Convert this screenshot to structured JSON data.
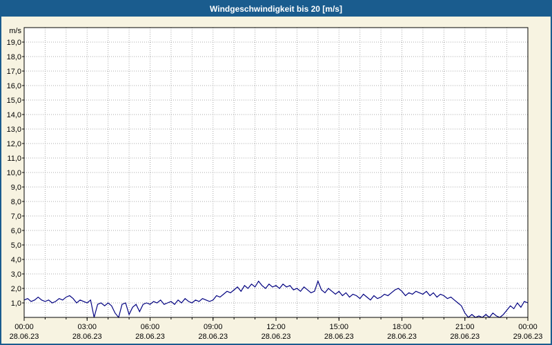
{
  "title": "Windgeschwindigkeit bis 20 [m/s]",
  "colors": {
    "titlebar_bg": "#1a5c8e",
    "titlebar_text": "#ffffff",
    "page_bg": "#f7f3e1",
    "plot_bg": "#ffffff",
    "grid": "#a8a8a8",
    "axis": "#000000",
    "line": "#000080",
    "frame_border": "#1a5c8e"
  },
  "chart_data": {
    "type": "line",
    "title": "Windgeschwindigkeit bis 20 [m/s]",
    "ylabel_unit": "m/s",
    "ylim": [
      0,
      20
    ],
    "grid": "dotted",
    "legend": "none",
    "line_color": "#000080",
    "ytick_values": [
      1,
      2,
      3,
      4,
      5,
      6,
      7,
      8,
      9,
      10,
      11,
      12,
      13,
      14,
      15,
      16,
      17,
      18,
      19
    ],
    "ytick_labels": [
      "1,0",
      "2,0",
      "3,0",
      "4,0",
      "5,0",
      "6,0",
      "7,0",
      "8,0",
      "9,0",
      "10,0",
      "11,0",
      "12,0",
      "13,0",
      "14,0",
      "15,0",
      "16,0",
      "17,0",
      "18,0",
      "19,0"
    ],
    "xlim_hours": [
      0,
      24
    ],
    "x_minor_tick_hours": 1,
    "x_tick_hours": [
      0,
      3,
      6,
      9,
      12,
      15,
      18,
      21,
      24
    ],
    "x_tick_time_labels": [
      "00:00",
      "03:00",
      "06:00",
      "09:00",
      "12:00",
      "15:00",
      "18:00",
      "21:00",
      "00:00"
    ],
    "x_tick_date_labels": [
      "28.06.23",
      "28.06.23",
      "28.06.23",
      "28.06.23",
      "28.06.23",
      "28.06.23",
      "28.06.23",
      "28.06.23",
      "29.06.23"
    ],
    "series": [
      {
        "name": "Windgeschwindigkeit",
        "start_hour": 0,
        "step_minutes": 10,
        "values": [
          1.2,
          1.3,
          1.1,
          1.2,
          1.4,
          1.2,
          1.1,
          1.2,
          1.0,
          1.1,
          1.3,
          1.2,
          1.4,
          1.5,
          1.3,
          1.0,
          1.2,
          1.1,
          1.0,
          1.2,
          0.0,
          0.9,
          1.0,
          0.8,
          1.0,
          0.8,
          0.3,
          0.0,
          0.9,
          1.0,
          0.2,
          0.7,
          0.9,
          0.4,
          0.9,
          1.0,
          0.9,
          1.1,
          1.0,
          1.2,
          0.9,
          1.0,
          1.1,
          0.9,
          1.2,
          1.0,
          1.3,
          1.1,
          1.0,
          1.2,
          1.1,
          1.3,
          1.2,
          1.1,
          1.2,
          1.5,
          1.4,
          1.6,
          1.8,
          1.7,
          1.9,
          2.1,
          1.8,
          2.2,
          2.0,
          2.3,
          2.1,
          2.5,
          2.2,
          2.0,
          2.3,
          2.1,
          2.2,
          2.0,
          2.3,
          2.1,
          2.2,
          1.9,
          2.0,
          1.8,
          2.1,
          1.9,
          1.7,
          1.8,
          2.5,
          1.9,
          1.7,
          2.0,
          1.8,
          1.6,
          1.8,
          1.5,
          1.7,
          1.4,
          1.6,
          1.5,
          1.3,
          1.6,
          1.4,
          1.2,
          1.5,
          1.3,
          1.4,
          1.6,
          1.5,
          1.7,
          1.9,
          2.0,
          1.8,
          1.5,
          1.7,
          1.6,
          1.8,
          1.7,
          1.6,
          1.8,
          1.5,
          1.7,
          1.4,
          1.6,
          1.5,
          1.3,
          1.4,
          1.2,
          1.0,
          0.8,
          0.3,
          0.0,
          0.2,
          0.0,
          0.1,
          0.0,
          0.2,
          0.0,
          0.3,
          0.1,
          0.0,
          0.2,
          0.5,
          0.8,
          0.6,
          1.0,
          0.7,
          1.1,
          1.0
        ]
      }
    ]
  }
}
